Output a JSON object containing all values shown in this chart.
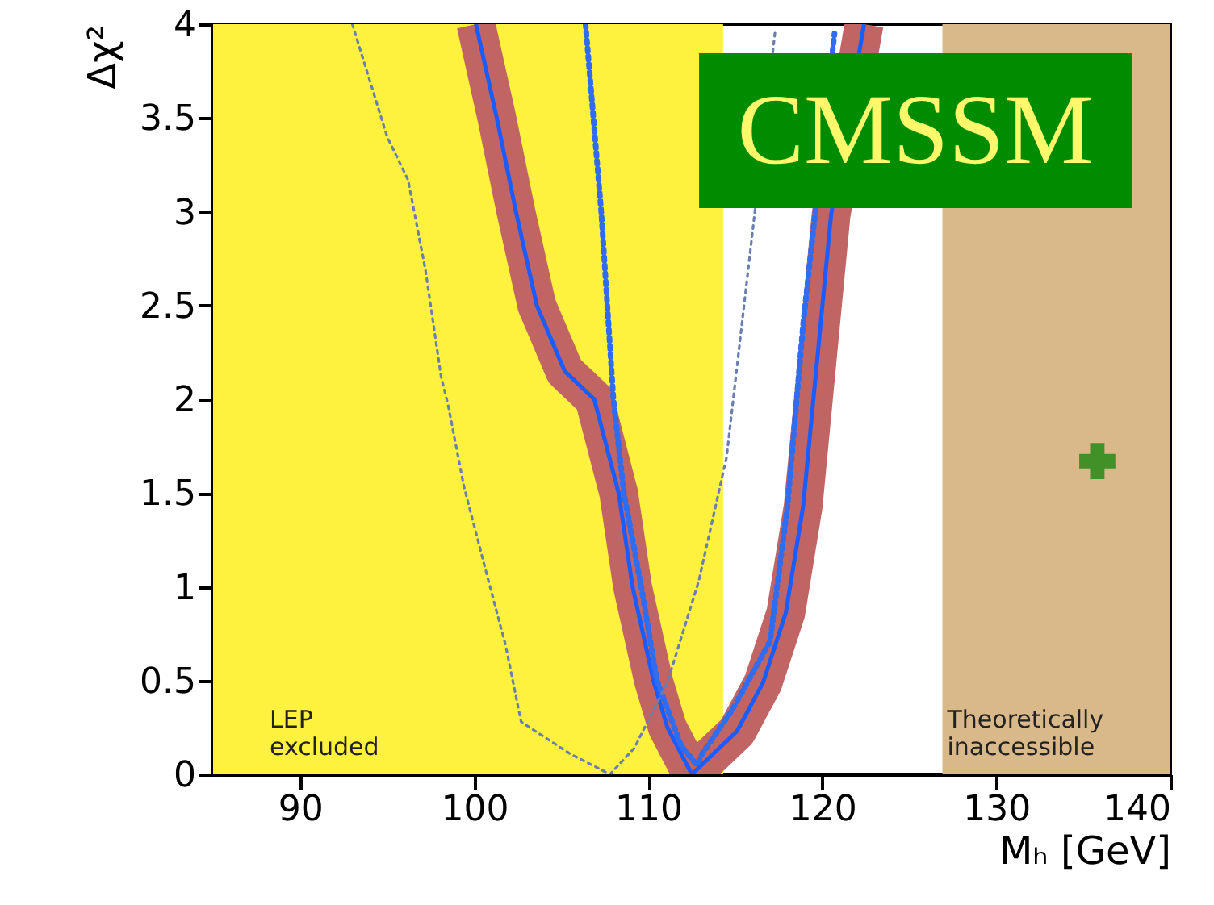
{
  "chart_data": {
    "type": "line",
    "xlabel": "Mₕ [GeV]",
    "ylabel": "Δχ²",
    "xlim": [
      85,
      140
    ],
    "ylim": [
      0,
      4
    ],
    "xticks": [
      90,
      100,
      110,
      120,
      130,
      140
    ],
    "yticks": [
      0,
      0.5,
      1,
      1.5,
      2,
      2.5,
      3,
      3.5,
      4
    ],
    "grid": false,
    "annotations": [
      "CMSSM"
    ],
    "bands": [
      {
        "axis": "x",
        "from": 85,
        "to": 114.3,
        "label": "LEP excluded",
        "color": "#fff23f"
      },
      {
        "axis": "x",
        "from": 126.9,
        "to": 140,
        "label": "Theoretically inaccessible",
        "color": "#d9b88a"
      }
    ],
    "series": [
      {
        "color": "#c06464",
        "line_style": "solid",
        "x": [
          100.1,
          101.3,
          102.4,
          103.6,
          105.2,
          106.9,
          108.3,
          109.1,
          110.3,
          111.1,
          112.5,
          115.1,
          116.6,
          117.9,
          118.9,
          120.5,
          121.6,
          122.4
        ],
        "values": [
          4,
          3.5,
          3,
          2.5,
          2.15,
          2,
          1.5,
          1,
          0.5,
          0.25,
          0,
          0.23,
          0.49,
          0.86,
          1.43,
          2.98,
          null,
          4
        ]
      },
      {
        "color": "#1a5cff",
        "line_style": "solid",
        "x": [
          100.1,
          101.3,
          102.4,
          103.6,
          105.2,
          106.9,
          108.3,
          109.1,
          110.3,
          111.1,
          112.5,
          115.1,
          116.6,
          117.9,
          118.9,
          120.5,
          121.6,
          122.4
        ],
        "values": [
          4,
          3.5,
          3,
          2.5,
          2.15,
          2,
          1.5,
          1,
          0.5,
          0.25,
          0,
          0.23,
          0.49,
          0.86,
          1.43,
          2.98,
          null,
          4
        ]
      },
      {
        "color": "#2f6cf0",
        "line_style": "dotted",
        "x": [
          106.4,
          107.3,
          108,
          108.6,
          109.6,
          110.5,
          111.9,
          112.8,
          113.1,
          114.8,
          117,
          118,
          118.9,
          119.8,
          120.7
        ],
        "values": [
          4,
          3,
          2,
          1.5,
          1,
          0.5,
          0.15,
          0.05,
          0.11,
          0.34,
          0.71,
          1.43,
          2.4,
          null,
          3.95
        ]
      },
      {
        "color": "#6a7fb0",
        "line_style": "dotted",
        "x": [
          93,
          95,
          96.2,
          97.2,
          98.1,
          98.5,
          99.4,
          100.6,
          101.8,
          102.7,
          105.5,
          107.8,
          109.2,
          111.1,
          112.9,
          114.5,
          116.1,
          116.6,
          117.3
        ],
        "values": [
          4,
          3.4,
          3.17,
          2.69,
          2.12,
          1.97,
          1.54,
          1.11,
          0.69,
          0.28,
          0.11,
          0,
          0.14,
          0.49,
          1.03,
          1.69,
          2.98,
          null,
          3.97
        ]
      },
      {
        "type": "scatter",
        "marker": "cross",
        "color": "#008000",
        "x": [
          135.8
        ],
        "values": [
          1.67
        ]
      }
    ]
  }
}
